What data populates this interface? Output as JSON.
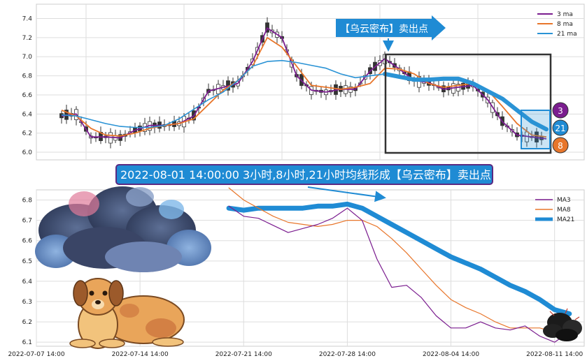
{
  "chart_data": [
    {
      "type": "line",
      "subtype": "candlestick-with-moving-averages",
      "title": "",
      "xlabel": "",
      "ylabel": "",
      "ylim": [
        5.92,
        7.55
      ],
      "yticks": [
        "6.0",
        "6.2",
        "6.4",
        "6.6",
        "6.8",
        "7.0",
        "7.2",
        "7.4"
      ],
      "grid": true,
      "legend_position": "top-right",
      "legend": [
        "3 ma",
        "8 ma",
        "21 ma"
      ],
      "colors": {
        "ma3": "#7b1d8f",
        "ma8": "#e8762b",
        "ma21": "#2a93d5",
        "candle": "#333333",
        "annotation": "#1f8bd4"
      },
      "series": [
        {
          "name": "3 ma",
          "x": [
            0,
            3,
            6,
            9,
            12,
            15,
            18,
            21,
            24,
            27,
            30,
            33,
            36,
            39,
            42,
            45,
            48,
            51,
            54,
            57,
            60,
            63,
            66,
            69,
            72,
            75,
            78,
            81,
            84,
            87,
            90,
            93,
            96,
            99
          ],
          "y": [
            6.38,
            6.4,
            6.16,
            6.16,
            6.15,
            6.23,
            6.28,
            6.28,
            6.3,
            6.38,
            6.64,
            6.68,
            6.72,
            6.95,
            7.3,
            7.2,
            6.8,
            6.65,
            6.63,
            6.66,
            6.66,
            6.85,
            6.98,
            6.87,
            6.75,
            6.73,
            6.66,
            6.68,
            6.7,
            6.55,
            6.32,
            6.18,
            6.16,
            6.14
          ]
        },
        {
          "name": "8 ma",
          "x": [
            0,
            3,
            6,
            9,
            12,
            15,
            18,
            21,
            24,
            27,
            30,
            33,
            36,
            39,
            42,
            45,
            48,
            51,
            54,
            57,
            60,
            63,
            66,
            69,
            72,
            75,
            78,
            81,
            84,
            87,
            90,
            93,
            96,
            99
          ],
          "y": [
            6.44,
            6.38,
            6.25,
            6.18,
            6.17,
            6.2,
            6.25,
            6.28,
            6.3,
            6.35,
            6.5,
            6.65,
            6.75,
            6.9,
            7.2,
            7.1,
            6.9,
            6.7,
            6.68,
            6.66,
            6.68,
            6.72,
            6.88,
            6.87,
            6.82,
            6.72,
            6.68,
            6.7,
            6.72,
            6.65,
            6.48,
            6.3,
            6.18,
            6.16
          ]
        },
        {
          "name": "21 ma",
          "x": [
            0,
            3,
            6,
            9,
            12,
            15,
            18,
            21,
            24,
            27,
            30,
            33,
            36,
            39,
            42,
            45,
            48,
            51,
            54,
            57,
            60,
            63,
            66,
            69,
            72,
            75,
            78,
            81,
            84,
            87,
            90,
            93,
            96,
            99
          ],
          "y": [
            6.39,
            6.38,
            6.34,
            6.3,
            6.27,
            6.26,
            6.26,
            6.28,
            6.35,
            6.45,
            6.55,
            6.63,
            6.75,
            6.9,
            6.95,
            6.96,
            6.94,
            6.91,
            6.88,
            6.82,
            6.78,
            6.8,
            6.82,
            6.79,
            6.76,
            6.76,
            6.77,
            6.77,
            6.72,
            6.64,
            6.56,
            6.44,
            6.32,
            6.24
          ]
        }
      ],
      "annotations": {
        "signal_label": "【乌云密布】卖出点",
        "badges": [
          "3",
          "21",
          "8"
        ]
      }
    },
    {
      "type": "line",
      "title": "",
      "xlabel": "",
      "ylabel": "",
      "xlim": [
        "2022-07-07 14:00",
        "2022-08-13 14:00"
      ],
      "xticks": [
        "2022-07-07 14:00",
        "2022-07-14 14:00",
        "2022-07-21 14:00",
        "2022-07-28 14:00",
        "2022-08-04 14:00",
        "2022-08-11 14:00"
      ],
      "ylim": [
        6.08,
        6.85
      ],
      "yticks": [
        "6.1",
        "6.2",
        "6.3",
        "6.4",
        "6.5",
        "6.6",
        "6.7",
        "6.8"
      ],
      "grid": true,
      "legend_position": "top-right",
      "legend": [
        "MA3",
        "MA8",
        "MA21"
      ],
      "colors": {
        "MA3": "#7b1d8f",
        "MA8": "#e8762b",
        "MA21": "#1f8bd4"
      },
      "series": [
        {
          "name": "MA3",
          "x": [
            "2022-07-20 14:00",
            "2022-07-21 14:00",
            "2022-07-22 14:00",
            "2022-07-24 14:00",
            "2022-07-25 14:00",
            "2022-07-26 14:00",
            "2022-07-27 14:00",
            "2022-07-28 14:00",
            "2022-07-29 14:00",
            "2022-07-30 14:00",
            "2022-07-31 14:00",
            "2022-08-01 14:00",
            "2022-08-02 14:00",
            "2022-08-03 14:00",
            "2022-08-04 14:00",
            "2022-08-05 14:00",
            "2022-08-06 14:00",
            "2022-08-07 14:00",
            "2022-08-08 14:00",
            "2022-08-09 14:00",
            "2022-08-10 14:00",
            "2022-08-11 14:00",
            "2022-08-12 14:00"
          ],
          "y": [
            6.77,
            6.72,
            6.71,
            6.64,
            6.66,
            6.68,
            6.71,
            6.76,
            6.7,
            6.51,
            6.37,
            6.38,
            6.32,
            6.23,
            6.17,
            6.17,
            6.2,
            6.17,
            6.16,
            6.18,
            6.13,
            6.1,
            6.15
          ]
        },
        {
          "name": "MA8",
          "x": [
            "2022-07-20 14:00",
            "2022-07-21 14:00",
            "2022-07-22 14:00",
            "2022-07-23 14:00",
            "2022-07-24 14:00",
            "2022-07-26 14:00",
            "2022-07-27 14:00",
            "2022-07-28 14:00",
            "2022-07-29 14:00",
            "2022-07-30 14:00",
            "2022-07-31 14:00",
            "2022-08-01 14:00",
            "2022-08-02 14:00",
            "2022-08-03 14:00",
            "2022-08-04 14:00",
            "2022-08-05 14:00",
            "2022-08-06 14:00",
            "2022-08-07 14:00",
            "2022-08-08 14:00",
            "2022-08-09 14:00",
            "2022-08-10 14:00",
            "2022-08-11 14:00",
            "2022-08-12 14:00"
          ],
          "y": [
            6.86,
            6.8,
            6.76,
            6.72,
            6.69,
            6.67,
            6.68,
            6.7,
            6.7,
            6.67,
            6.61,
            6.54,
            6.46,
            6.38,
            6.31,
            6.27,
            6.24,
            6.2,
            6.17,
            6.17,
            6.17,
            6.15,
            6.15
          ]
        },
        {
          "name": "MA21",
          "x": [
            "2022-07-20 14:00",
            "2022-07-21 14:00",
            "2022-07-22 14:00",
            "2022-07-23 14:00",
            "2022-07-24 14:00",
            "2022-07-25 14:00",
            "2022-07-26 14:00",
            "2022-07-27 14:00",
            "2022-07-28 14:00",
            "2022-07-29 14:00",
            "2022-07-30 14:00",
            "2022-07-31 14:00",
            "2022-08-01 14:00",
            "2022-08-02 14:00",
            "2022-08-03 14:00",
            "2022-08-04 14:00",
            "2022-08-05 14:00",
            "2022-08-06 14:00",
            "2022-08-07 14:00",
            "2022-08-08 14:00",
            "2022-08-09 14:00",
            "2022-08-10 14:00",
            "2022-08-11 14:00",
            "2022-08-12 14:00"
          ],
          "y": [
            6.76,
            6.75,
            6.76,
            6.76,
            6.76,
            6.76,
            6.77,
            6.77,
            6.78,
            6.76,
            6.72,
            6.68,
            6.64,
            6.6,
            6.56,
            6.52,
            6.49,
            6.46,
            6.42,
            6.38,
            6.35,
            6.31,
            6.26,
            6.24
          ]
        }
      ]
    }
  ],
  "banner": {
    "text": "2022-08-01 14:00:00 3小时,8小时,21小时均线形成【乌云密布】卖出点"
  }
}
